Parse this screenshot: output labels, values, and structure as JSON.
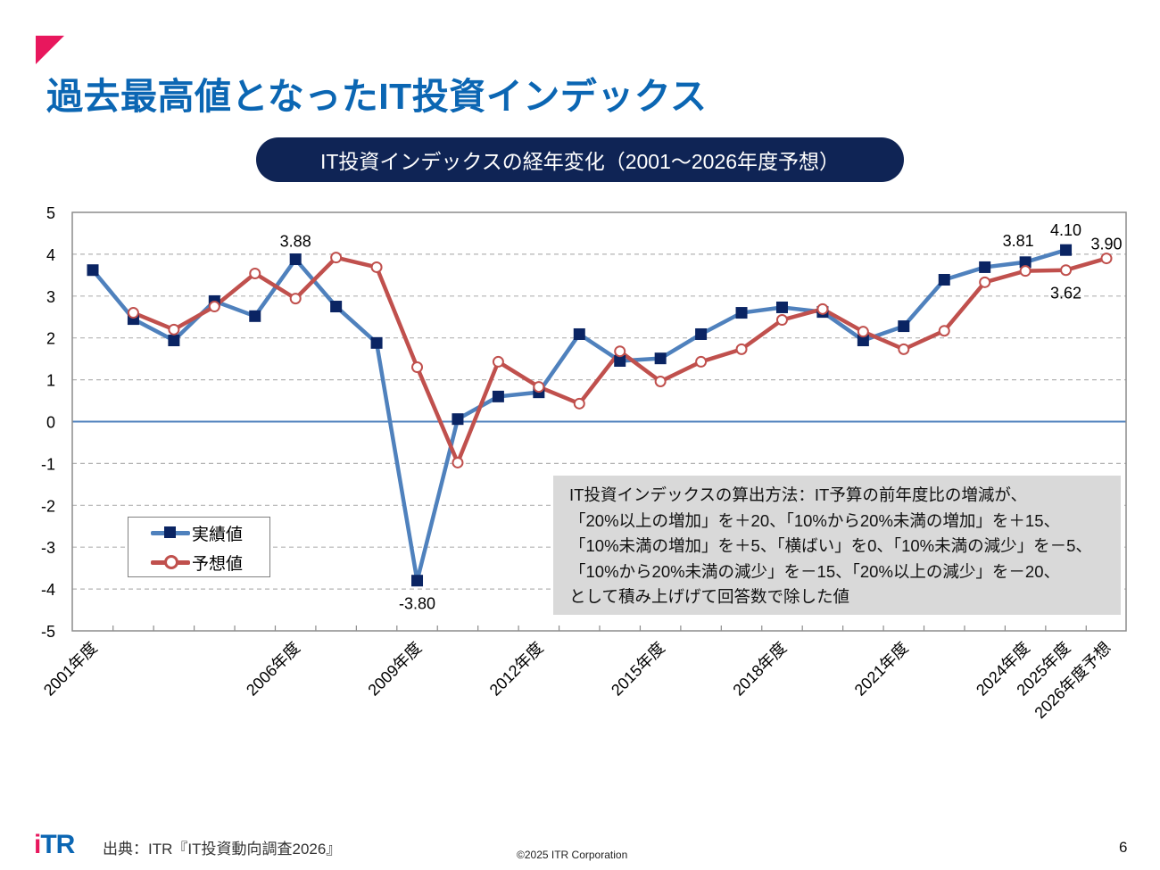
{
  "slide": {
    "title": "過去最高値となったIT投資インデックス",
    "chart_heading": "IT投資インデックスの経年変化（2001～2026年度予想）",
    "accent_color": "#e8175d",
    "title_color": "#0b66b3",
    "heading_bg_color": "#0f2455"
  },
  "note": {
    "lines": [
      "IT投資インデックスの算出方法：IT予算の前年度比の増減が、",
      "「20%以上の増加」を＋20、「10%から20%未満の増加」を＋15、",
      "「10%未満の増加」を＋5、「横ばい」を0、「10%未満の減少」を－5、",
      "「10%から20%未満の減少」を－15、「20%以上の減少」を－20、",
      "として積み上げげて回答数で除した値"
    ]
  },
  "footer": {
    "logo_text": "iTR",
    "source": "出典：ITR『IT投資動向調査2026』",
    "copyright": "©2025 ITR Corporation",
    "page_number": "6"
  },
  "chart_data": {
    "type": "line",
    "title": "IT投資インデックスの経年変化（2001～2026年度予想）",
    "xlabel": "",
    "ylabel": "",
    "ylim": [
      -5,
      5
    ],
    "yticks": [
      5,
      4,
      3,
      2,
      1,
      0,
      -1,
      -2,
      -3,
      -4,
      -5
    ],
    "grid": true,
    "legend_position": "lower-left",
    "x": [
      2001,
      2002,
      2003,
      2004,
      2005,
      2006,
      2007,
      2008,
      2009,
      2010,
      2011,
      2012,
      2013,
      2014,
      2015,
      2016,
      2017,
      2018,
      2019,
      2020,
      2021,
      2022,
      2023,
      2024,
      2025,
      2026
    ],
    "x_tick_labels": [
      {
        "index": 0,
        "label": "2001年度"
      },
      {
        "index": 5,
        "label": "2006年度"
      },
      {
        "index": 8,
        "label": "2009年度"
      },
      {
        "index": 11,
        "label": "2012年度"
      },
      {
        "index": 14,
        "label": "2015年度"
      },
      {
        "index": 17,
        "label": "2018年度"
      },
      {
        "index": 20,
        "label": "2021年度"
      },
      {
        "index": 23,
        "label": "2024年度"
      },
      {
        "index": 24,
        "label": "2025年度"
      },
      {
        "index": 25,
        "label": "2026年度予想"
      }
    ],
    "series": [
      {
        "name": "実績値",
        "color": "#4f81bd",
        "marker": "square",
        "marker_color": "#0a2463",
        "values": [
          3.62,
          2.45,
          1.94,
          2.88,
          2.52,
          3.88,
          2.75,
          1.88,
          -3.8,
          0.06,
          0.6,
          0.7,
          2.09,
          1.45,
          1.51,
          2.09,
          2.6,
          2.73,
          2.62,
          1.94,
          2.28,
          3.39,
          3.69,
          3.81,
          4.1,
          null
        ]
      },
      {
        "name": "予想値",
        "color": "#c0504d",
        "marker": "circle-open",
        "marker_color": "#c0504d",
        "values": [
          null,
          2.6,
          2.2,
          2.75,
          3.54,
          2.94,
          3.92,
          3.69,
          1.3,
          -0.98,
          1.43,
          0.83,
          0.43,
          1.68,
          0.96,
          1.43,
          1.73,
          2.43,
          2.69,
          2.15,
          1.73,
          2.17,
          3.33,
          3.6,
          3.62,
          3.9
        ]
      }
    ],
    "annotations": [
      {
        "series": 0,
        "index": 5,
        "text": "3.88",
        "position": "above"
      },
      {
        "series": 0,
        "index": 8,
        "text": "-3.80",
        "position": "below"
      },
      {
        "series": 0,
        "index": 23,
        "text": "3.81",
        "position": "above-left"
      },
      {
        "series": 0,
        "index": 24,
        "text": "4.10",
        "position": "above"
      },
      {
        "series": 1,
        "index": 24,
        "text": "3.62",
        "position": "below"
      },
      {
        "series": 1,
        "index": 25,
        "text": "3.90",
        "position": "above"
      }
    ]
  }
}
